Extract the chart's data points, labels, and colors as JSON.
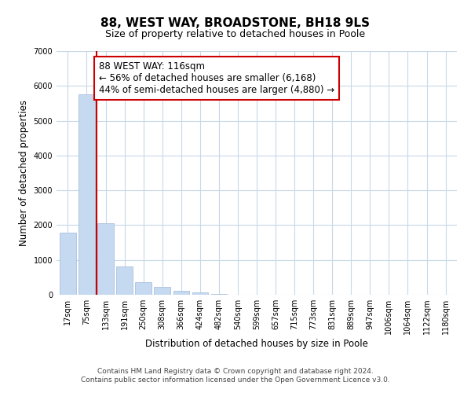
{
  "title": "88, WEST WAY, BROADSTONE, BH18 9LS",
  "subtitle": "Size of property relative to detached houses in Poole",
  "xlabel": "Distribution of detached houses by size in Poole",
  "ylabel": "Number of detached properties",
  "bin_labels": [
    "17sqm",
    "75sqm",
    "133sqm",
    "191sqm",
    "250sqm",
    "308sqm",
    "366sqm",
    "424sqm",
    "482sqm",
    "540sqm",
    "599sqm",
    "657sqm",
    "715sqm",
    "773sqm",
    "831sqm",
    "889sqm",
    "947sqm",
    "1006sqm",
    "1064sqm",
    "1122sqm",
    "1180sqm"
  ],
  "bar_values": [
    1780,
    5750,
    2050,
    820,
    360,
    220,
    110,
    60,
    30,
    10,
    5,
    0,
    0,
    0,
    0,
    0,
    0,
    0,
    0,
    0,
    0
  ],
  "bar_color": "#c5d9f0",
  "bar_edge_color": "#a0b8d8",
  "vline_x_index": 1.5,
  "vline_color": "#cc0000",
  "annotation_text": "88 WEST WAY: 116sqm\n← 56% of detached houses are smaller (6,168)\n44% of semi-detached houses are larger (4,880) →",
  "annotation_box_edge_color": "#cc0000",
  "annotation_fontsize": 8.5,
  "ylim": [
    0,
    7000
  ],
  "yticks": [
    0,
    1000,
    2000,
    3000,
    4000,
    5000,
    6000,
    7000
  ],
  "footer_line1": "Contains HM Land Registry data © Crown copyright and database right 2024.",
  "footer_line2": "Contains public sector information licensed under the Open Government Licence v3.0.",
  "background_color": "#ffffff",
  "grid_color": "#c8d8e8",
  "title_fontsize": 11,
  "subtitle_fontsize": 9,
  "axis_label_fontsize": 8.5,
  "tick_fontsize": 7,
  "footer_fontsize": 6.5
}
